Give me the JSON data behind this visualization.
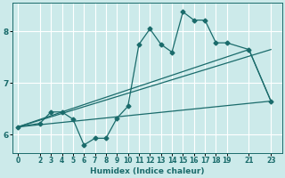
{
  "xlabel": "Humidex (Indice chaleur)",
  "bg_color": "#cceaea",
  "grid_color": "#ffffff",
  "line_color": "#1a6b6b",
  "xlim": [
    -0.5,
    24
  ],
  "ylim": [
    5.65,
    8.55
  ],
  "xticks": [
    0,
    2,
    3,
    4,
    5,
    6,
    7,
    8,
    9,
    10,
    11,
    12,
    13,
    14,
    15,
    16,
    17,
    18,
    19,
    21,
    23
  ],
  "yticks": [
    6,
    7,
    8
  ],
  "series1_x": [
    0,
    2,
    3,
    4,
    5,
    6,
    7,
    8,
    9,
    10,
    11,
    12,
    13,
    14,
    15,
    16,
    17,
    18,
    19,
    21,
    23
  ],
  "series1_y": [
    6.15,
    6.22,
    6.44,
    6.44,
    6.3,
    5.8,
    5.93,
    5.93,
    6.32,
    6.55,
    7.75,
    8.05,
    7.75,
    7.6,
    8.38,
    8.22,
    8.22,
    7.78,
    7.78,
    7.65,
    6.65
  ],
  "series2_x": [
    0,
    4,
    21,
    23
  ],
  "series2_y": [
    6.15,
    6.44,
    7.65,
    6.65
  ],
  "series3_x": [
    0,
    23
  ],
  "series3_y": [
    6.15,
    6.65
  ],
  "series4_x": [
    0,
    23
  ],
  "series4_y": [
    6.15,
    7.65
  ]
}
